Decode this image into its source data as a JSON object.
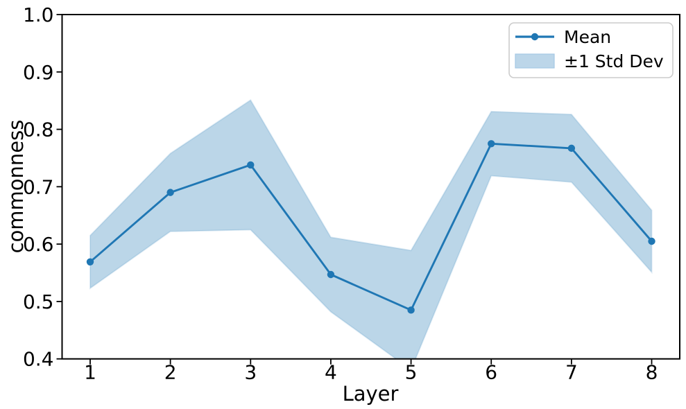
{
  "chart_data": {
    "type": "line",
    "title": "",
    "xlabel": "Layer",
    "ylabel": "commonness",
    "x": [
      1,
      2,
      3,
      4,
      5,
      6,
      7,
      8
    ],
    "series": [
      {
        "name": "Mean",
        "values": [
          0.569,
          0.69,
          0.738,
          0.547,
          0.485,
          0.775,
          0.767,
          0.605
        ]
      }
    ],
    "std": [
      0.046,
      0.068,
      0.113,
      0.065,
      0.104,
      0.056,
      0.059,
      0.054
    ],
    "band_label": "±1 Std Dev",
    "xlim": [
      0.65,
      8.35
    ],
    "ylim": [
      0.4,
      1.0
    ],
    "xticks": [
      1,
      2,
      3,
      4,
      5,
      6,
      7,
      8
    ],
    "yticks": [
      0.4,
      0.5,
      0.6,
      0.7,
      0.8,
      0.9,
      1.0
    ],
    "ytick_decimals": 1,
    "grid": false,
    "legend_position": "upper right",
    "colors": {
      "line": "#1f77b4",
      "band": "rgba(31,119,180,0.30)",
      "band_edge": "rgba(31,119,180,0.15)",
      "band_legend_fill": "#bcd6e9",
      "band_legend_edge": "#a5c8e4",
      "spine": "#000000",
      "text": "#000000",
      "legend_border": "#cccccc",
      "legend_bg": "rgba(255,255,255,0.85)"
    }
  }
}
